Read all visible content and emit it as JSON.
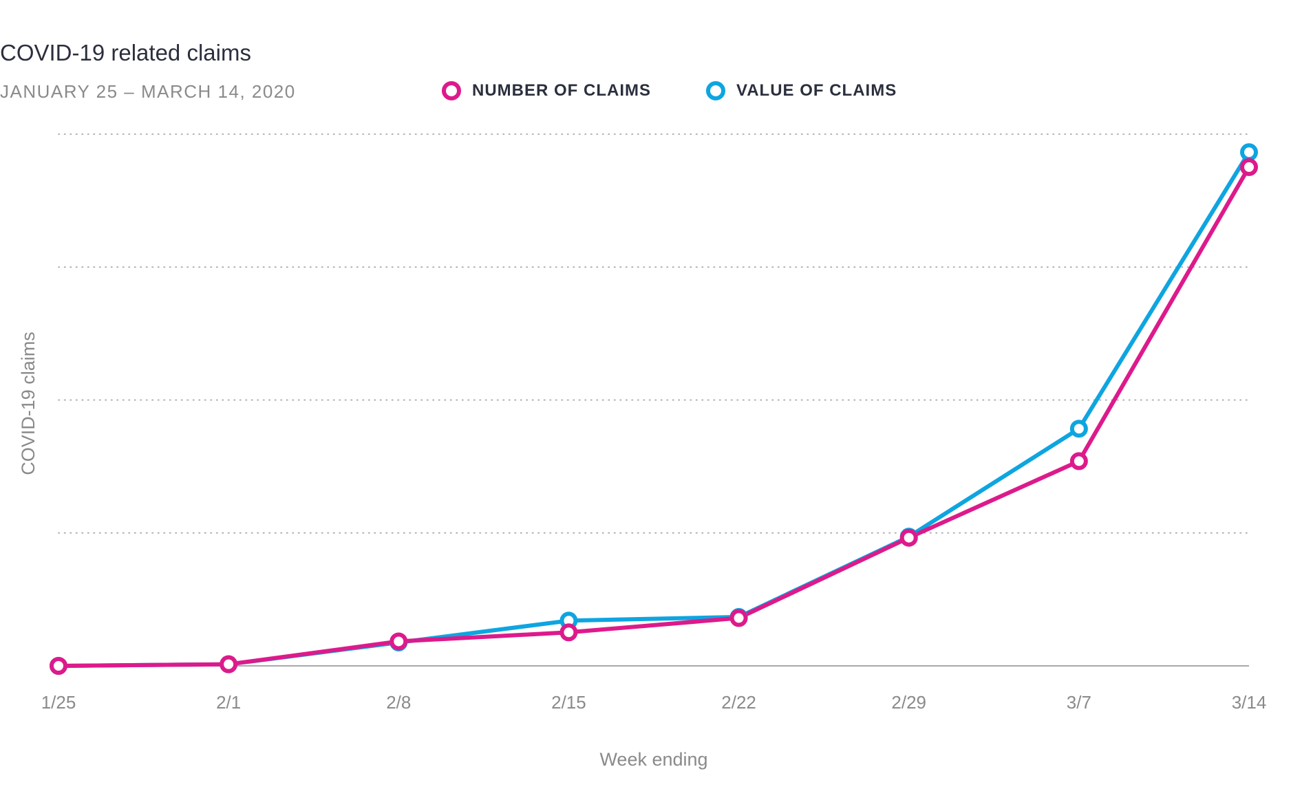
{
  "header": {
    "title": "COVID-19 related claims",
    "subtitle": "JANUARY 25 – MARCH 14, 2020"
  },
  "chart_data": {
    "type": "line",
    "title": "COVID-19 related claims",
    "subtitle": "JANUARY 25 – MARCH 14, 2020",
    "xlabel": "Week ending",
    "ylabel": "COVID-19 claims",
    "categories": [
      "1/25",
      "2/1",
      "2/8",
      "2/15",
      "2/22",
      "2/29",
      "3/7",
      "3/14"
    ],
    "ylim": [
      0,
      100
    ],
    "y_tick_labels_shown": false,
    "grid": true,
    "legend_position": "top",
    "series": [
      {
        "name": "NUMBER OF CLAIMS",
        "color": "#dd1a8b",
        "values": [
          0,
          0.3,
          4.6,
          6.3,
          9,
          24.1,
          38.5,
          93.8
        ]
      },
      {
        "name": "VALUE OF CLAIMS",
        "color": "#0ea5e0",
        "values": [
          0,
          0.3,
          4.4,
          8.5,
          9.2,
          24.3,
          44.6,
          96.6
        ]
      }
    ]
  }
}
